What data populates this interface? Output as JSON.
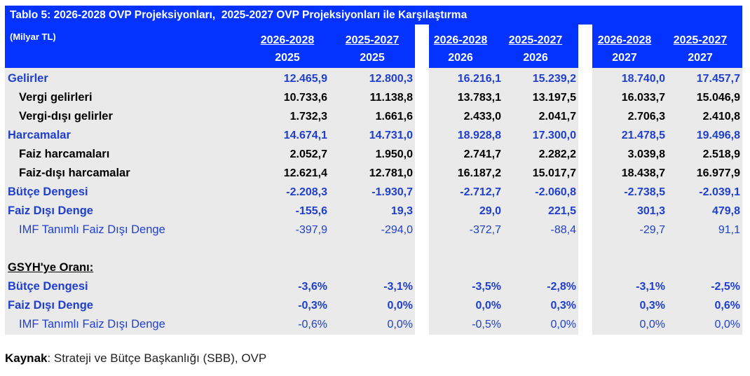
{
  "title": "Tablo 5: 2026-2028 OVP Projeksiyonları,  2025-2027 OVP Projeksiyonları ile Karşılaştırma",
  "unit": "(Milyar TL)",
  "columns": [
    {
      "program": "2026-2028",
      "year": "2025"
    },
    {
      "program": "2025-2027",
      "year": "2025"
    },
    {
      "program": "2026-2028",
      "year": "2026"
    },
    {
      "program": "2025-2027",
      "year": "2026"
    },
    {
      "program": "2026-2028",
      "year": "2027"
    },
    {
      "program": "2025-2027",
      "year": "2027"
    }
  ],
  "rows": [
    {
      "label": "Gelirler",
      "level": "main",
      "values": [
        "12.465,9",
        "12.800,3",
        "16.216,1",
        "15.239,2",
        "18.740,0",
        "17.457,7"
      ]
    },
    {
      "label": "Vergi gelirleri",
      "level": "sub",
      "values": [
        "10.733,6",
        "11.138,8",
        "13.783,1",
        "13.197,5",
        "16.033,7",
        "15.046,9"
      ]
    },
    {
      "label": "Vergi-dışı gelirler",
      "level": "sub",
      "values": [
        "1.732,3",
        "1.661,6",
        "2.433,0",
        "2.041,7",
        "2.706,3",
        "2.410,8"
      ]
    },
    {
      "label": "Harcamalar",
      "level": "main",
      "values": [
        "14.674,1",
        "14.731,0",
        "18.928,8",
        "17.300,0",
        "21.478,5",
        "19.496,8"
      ]
    },
    {
      "label": "Faiz harcamaları",
      "level": "sub",
      "values": [
        "2.052,7",
        "1.950,0",
        "2.741,7",
        "2.282,2",
        "3.039,8",
        "2.518,9"
      ]
    },
    {
      "label": "Faiz-dışı harcamalar",
      "level": "sub",
      "values": [
        "12.621,4",
        "12.781,0",
        "16.187,2",
        "15.017,7",
        "18.438,7",
        "16.977,9"
      ]
    },
    {
      "label": "Bütçe Dengesi",
      "level": "main",
      "values": [
        "-2.208,3",
        "-1.930,7",
        "-2.712,7",
        "-2.060,8",
        "-2.738,5",
        "-2.039,1"
      ]
    },
    {
      "label": "Faiz Dışı Denge",
      "level": "main",
      "values": [
        "-155,6",
        "19,3",
        "29,0",
        "221,5",
        "301,3",
        "479,8"
      ]
    },
    {
      "label": "IMF Tanımlı Faiz Dışı Denge",
      "level": "imf",
      "values": [
        "-397,9",
        "-294,0",
        "-372,7",
        "-88,4",
        "-29,7",
        "91,1"
      ]
    }
  ],
  "ratio_heading": "GSYH'ye Oranı:",
  "ratio_rows": [
    {
      "label": "Bütçe Dengesi",
      "level": "main",
      "values": [
        "-3,6%",
        "-3,1%",
        "-3,5%",
        "-2,8%",
        "-3,1%",
        "-2,5%"
      ]
    },
    {
      "label": "Faiz Dışı Denge",
      "level": "main",
      "values": [
        "-0,3%",
        "0,0%",
        "0,0%",
        "0,3%",
        "0,3%",
        "0,6%"
      ]
    },
    {
      "label": "IMF Tanımlı Faiz Dışı Denge",
      "level": "imf",
      "values": [
        "-0,6%",
        "0,0%",
        "-0,5%",
        "0,0%",
        "0,0%",
        "0,0%"
      ]
    }
  ],
  "source": {
    "label": "Kaynak",
    "text": ": Strateji ve Bütçe Başkanlığı (SBB), OVP"
  }
}
